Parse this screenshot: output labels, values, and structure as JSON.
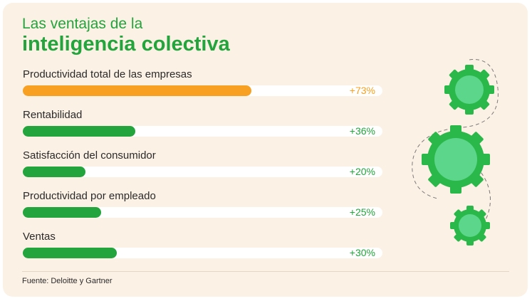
{
  "title": {
    "line1": "Las ventajas de la",
    "line2": "inteligencia colectiva"
  },
  "chart_data": {
    "type": "bar",
    "orientation": "horizontal",
    "categories": [
      "Productividad total de las empresas",
      "Rentabilidad",
      "Satisfacción del consumidor",
      "Productividad por empleado",
      "Ventas"
    ],
    "values": [
      73,
      36,
      20,
      25,
      30
    ],
    "value_labels": [
      "+73%",
      "+36%",
      "+20%",
      "+25%",
      "+30%"
    ],
    "bar_colors": [
      "#f7a021",
      "#23a43c",
      "#23a43c",
      "#23a43c",
      "#23a43c"
    ],
    "xlim": [
      0,
      100
    ]
  },
  "source": "Fuente: Deloitte y Gartner",
  "colors": {
    "background": "#fcf1e5",
    "accent_green": "#23a43c",
    "accent_orange": "#f7a021",
    "track": "#ffffff",
    "gear_outer": "#2ab84a",
    "gear_inner": "#5cd68a"
  },
  "decoration": {
    "icon": "gear-icon"
  }
}
